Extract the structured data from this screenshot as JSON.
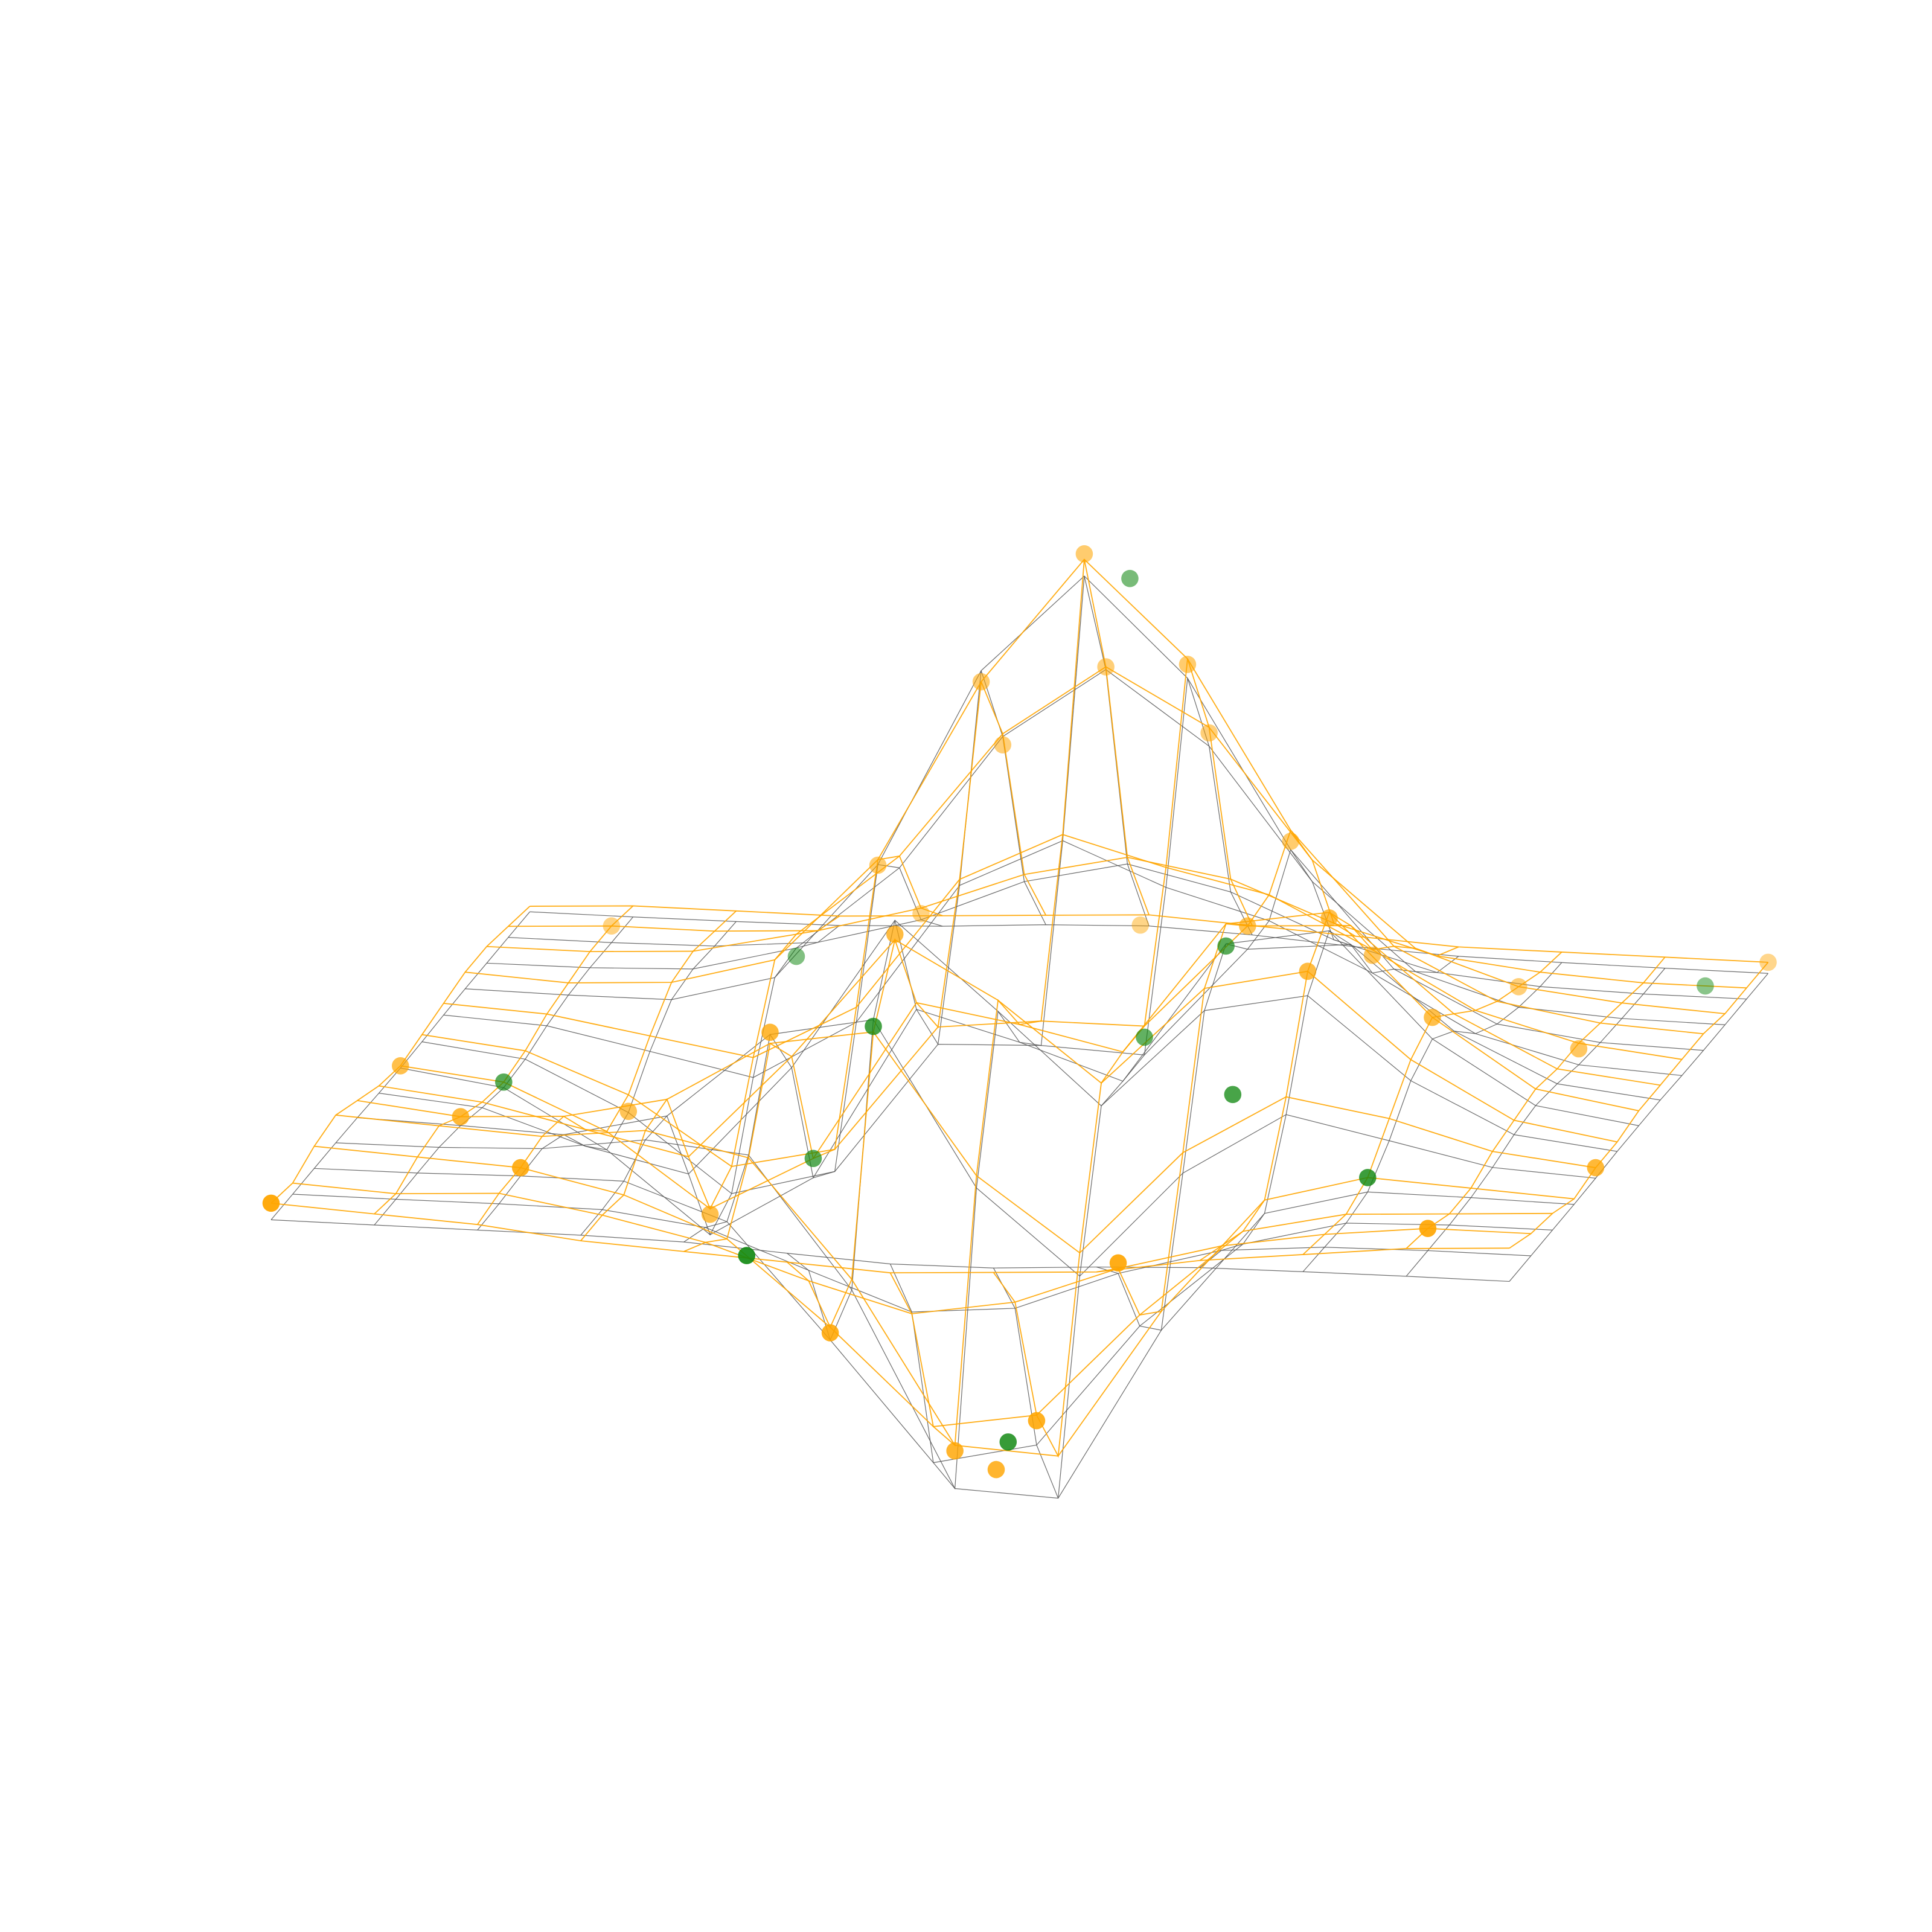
{
  "chart_data": {
    "type": "surface3d",
    "x": [
      -3,
      -2.5,
      -2,
      -1.5,
      -1,
      -0.5,
      0,
      0.5,
      1,
      1.5,
      2,
      2.5,
      3
    ],
    "y": [
      -3,
      -2.5,
      -2,
      -1.5,
      -1,
      -0.5,
      0,
      0.5,
      1,
      1.5,
      2,
      2.5,
      3
    ],
    "xlim": [
      -3,
      3
    ],
    "ylim": [
      -3,
      3
    ],
    "zlim": [
      -7,
      9
    ],
    "surfaces": [
      {
        "color": "#555555",
        "z": [
          [
            0,
            0,
            0,
            0,
            -0.03,
            -0.14,
            -0.24,
            -0.22,
            -0.11,
            -0.03,
            -0.01,
            0,
            0
          ],
          [
            0,
            0,
            0.01,
            0,
            -0.23,
            -0.91,
            -1.57,
            -1.41,
            -0.69,
            -0.18,
            -0.03,
            0,
            0
          ],
          [
            0,
            0.01,
            0.05,
            0.05,
            -0.59,
            -2.63,
            -4.75,
            -4.34,
            -2.1,
            -0.53,
            -0.06,
            0,
            0
          ],
          [
            0,
            0.01,
            0.08,
            0.33,
            0.15,
            -2.19,
            -5.68,
            -5.76,
            -2.64,
            -0.44,
            0.04,
            0.03,
            0
          ],
          [
            -0.01,
            -0.06,
            -0.13,
            0.3,
            1.86,
            2.22,
            -0.72,
            -2.22,
            -0.27,
            0.88,
            0.5,
            0.11,
            0.01
          ],
          [
            -0.03,
            -0.2,
            -0.8,
            -1.21,
            0.8,
            3.55,
            2,
            0.39,
            2.2,
            2.56,
            1.12,
            0.24,
            0.03
          ],
          [
            -0.04,
            -0.3,
            -1.33,
            -2.77,
            -1.65,
            1.48,
            0.98,
            0.37,
            2.94,
            3.27,
            1.41,
            0.3,
            0.03
          ],
          [
            -0.03,
            -0.25,
            -1.12,
            -2.49,
            -2,
            0.39,
            0.46,
            0.38,
            2.38,
            2.56,
            1.09,
            0.23,
            0.03
          ],
          [
            -0.01,
            -0.11,
            -0.48,
            -0.86,
            0.23,
            2.79,
            3.69,
            2.94,
            2.43,
            1.58,
            0.58,
            0.11,
            0.01
          ],
          [
            0,
            -0.02,
            -0.01,
            0.48,
            2.61,
            6.2,
            8,
            6.25,
            3.25,
            1.19,
            0.29,
            0.05,
            0
          ],
          [
            0,
            0.01,
            0.08,
            0.55,
            2.09,
            4.55,
            5.85,
            4.56,
            2.21,
            0.68,
            0.13,
            0.02,
            0
          ],
          [
            0,
            0,
            0.03,
            0.19,
            0.69,
            1.47,
            1.88,
            1.47,
            0.7,
            0.2,
            0.04,
            0,
            0
          ],
          [
            0,
            0,
            0.01,
            0.03,
            0.11,
            0.23,
            0.3,
            0.23,
            0.11,
            0.03,
            0.01,
            0,
            0
          ]
        ]
      },
      {
        "color": "#ffa500",
        "z": [
          [
            0.3,
            0.2,
            0.1,
            -0.1,
            -0.2,
            -0.3,
            -0.4,
            -0.3,
            -0.2,
            0.1,
            0.3,
            0.5,
            0.6
          ],
          [
            0.2,
            0.1,
            0.2,
            -0.1,
            -0.5,
            -1.1,
            -1.6,
            -1.3,
            -0.6,
            -0.1,
            0.2,
            0.4,
            0.4
          ],
          [
            0.4,
            0.3,
            0.2,
            -0.2,
            -0.9,
            -2.4,
            -4.1,
            -3.8,
            -1.9,
            -0.3,
            0.1,
            0.2,
            0.3
          ],
          [
            0.5,
            0.4,
            0.3,
            0.5,
            0.1,
            -2,
            -4.9,
            -5,
            -2.3,
            -0.2,
            0.3,
            0.2,
            0.1
          ],
          [
            0.3,
            0.1,
            0.2,
            0.6,
            1.7,
            2,
            -0.5,
            -1.8,
            0.1,
            1.2,
            0.9,
            0.4,
            0.2
          ],
          [
            0.1,
            -0.1,
            -0.5,
            -0.9,
            1,
            3.2,
            2.2,
            0.8,
            2.6,
            3,
            1.5,
            0.5,
            0.2
          ],
          [
            0,
            -0.2,
            -1,
            -2.3,
            -1.3,
            1.6,
            1.3,
            0.9,
            3.3,
            3.6,
            1.8,
            0.6,
            0.3
          ],
          [
            0.1,
            -0.1,
            -0.8,
            -2,
            -1.6,
            0.7,
            0.9,
            0.9,
            2.8,
            2.9,
            1.4,
            0.5,
            0.3
          ],
          [
            0.2,
            0.1,
            -0.2,
            -0.5,
            0.5,
            2.9,
            3.8,
            3.3,
            2.9,
            2,
            1,
            0.5,
            0.3
          ],
          [
            0.3,
            0.2,
            0.3,
            0.8,
            2.7,
            6,
            8.3,
            6.6,
            3.6,
            1.6,
            0.7,
            0.4,
            0.3
          ],
          [
            0.3,
            0.3,
            0.4,
            0.8,
            2.3,
            4.6,
            5.9,
            4.9,
            2.6,
            1.1,
            0.5,
            0.3,
            0.2
          ],
          [
            0.2,
            0.3,
            0.3,
            0.4,
            0.9,
            1.6,
            2,
            1.7,
            1,
            0.5,
            0.3,
            0.2,
            0.2
          ],
          [
            0.1,
            0.2,
            0.2,
            0.2,
            0.3,
            0.4,
            0.5,
            0.4,
            0.3,
            0.2,
            0.2,
            0.2,
            0.2
          ]
        ]
      }
    ],
    "points": [
      {
        "color": "#ffa500",
        "x": [
          0,
          0.5,
          -0.5,
          -1,
          1,
          0,
          0.5,
          -0.5,
          1.5,
          1.5,
          2,
          1,
          -0.5,
          -1,
          0,
          0.5,
          -0.5,
          0.2,
          -1.5,
          -2,
          -2.5,
          -3,
          3,
          2.5,
          -2.5,
          2,
          -2,
          1,
          2.5,
          -1,
          0,
          -3,
          3,
          1.5
        ],
        "y": [
          1.5,
          1.5,
          1.5,
          1.5,
          1.5,
          2,
          2,
          2,
          0,
          -0.5,
          0,
          0.5,
          -0.5,
          -1,
          -1.5,
          -2,
          -2,
          -1.5,
          0,
          0.5,
          -1,
          -3,
          3,
          -2.5,
          2.5,
          2,
          -2,
          -2.5,
          1,
          2.5,
          2.8,
          0,
          -1,
          1
        ],
        "z": [
          8.4,
          6.5,
          6,
          2.6,
          3.4,
          5.9,
          4.8,
          4.4,
          3.5,
          3,
          1.8,
          2.8,
          3.3,
          1.9,
          -5,
          -3.9,
          -2.5,
          -5.3,
          -2.4,
          -1.1,
          0.1,
          0.3,
          0.2,
          0.4,
          0.3,
          0.5,
          0.2,
          -0.5,
          0.4,
          0.8,
          0.5,
          0,
          0.2,
          1.9
        ]
      },
      {
        "color": "#118811",
        "x": [
          0.2,
          -1,
          1,
          0.5,
          -0.5,
          0.3,
          -2.5,
          2,
          -1.5,
          1.2,
          2.8,
          -0.8
        ],
        "y": [
          1.6,
          0,
          0,
          0.5,
          -1,
          -1.7,
          0,
          -1.5,
          2,
          -0.8,
          2.5,
          -2.5
        ],
        "z": [
          7.9,
          -1.3,
          2.9,
          0.7,
          2.1,
          -4.6,
          -0.2,
          0.3,
          0.4,
          1,
          0.2,
          -0.7
        ]
      }
    ]
  }
}
